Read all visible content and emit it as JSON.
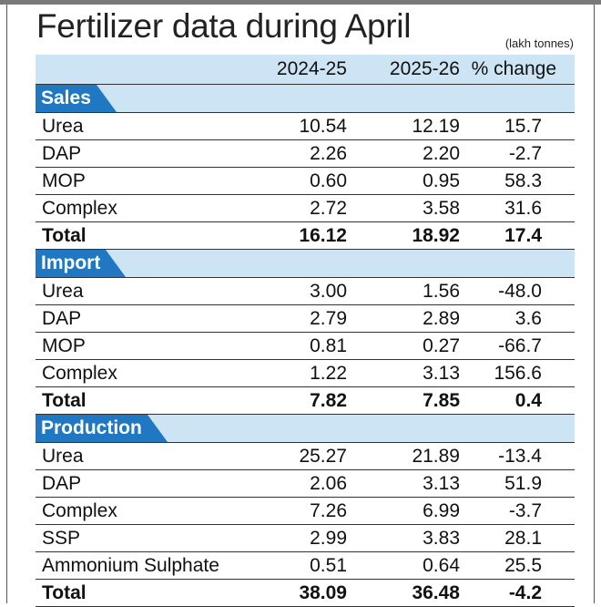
{
  "title": "Fertilizer data during April",
  "unit": "(lakh tonnes)",
  "chart_data": {
    "type": "table",
    "columns": [
      "",
      "2024-25",
      "2025-26",
      "% change"
    ],
    "sections": [
      {
        "name": "Sales",
        "rows": [
          {
            "label": "Urea",
            "v1": "10.54",
            "v2": "12.19",
            "chg": "15.7"
          },
          {
            "label": "DAP",
            "v1": "2.26",
            "v2": "2.20",
            "chg": "-2.7"
          },
          {
            "label": "MOP",
            "v1": "0.60",
            "v2": "0.95",
            "chg": "58.3"
          },
          {
            "label": "Complex",
            "v1": "2.72",
            "v2": "3.58",
            "chg": "31.6"
          }
        ],
        "total": {
          "label": "Total",
          "v1": "16.12",
          "v2": "18.92",
          "chg": "17.4"
        }
      },
      {
        "name": "Import",
        "rows": [
          {
            "label": "Urea",
            "v1": "3.00",
            "v2": "1.56",
            "chg": "-48.0"
          },
          {
            "label": "DAP",
            "v1": "2.79",
            "v2": "2.89",
            "chg": "3.6"
          },
          {
            "label": "MOP",
            "v1": "0.81",
            "v2": "0.27",
            "chg": "-66.7"
          },
          {
            "label": "Complex",
            "v1": "1.22",
            "v2": "3.13",
            "chg": "156.6"
          }
        ],
        "total": {
          "label": "Total",
          "v1": "7.82",
          "v2": "7.85",
          "chg": "0.4"
        }
      },
      {
        "name": "Production",
        "rows": [
          {
            "label": "Urea",
            "v1": "25.27",
            "v2": "21.89",
            "chg": "-13.4"
          },
          {
            "label": "DAP",
            "v1": "2.06",
            "v2": "3.13",
            "chg": "51.9"
          },
          {
            "label": "Complex",
            "v1": "7.26",
            "v2": "6.99",
            "chg": "-3.7"
          },
          {
            "label": "SSP",
            "v1": "2.99",
            "v2": "3.83",
            "chg": "28.1"
          },
          {
            "label": "Ammonium Sulphate",
            "v1": "0.51",
            "v2": "0.64",
            "chg": "25.5"
          }
        ],
        "total": {
          "label": "Total",
          "v1": "38.09",
          "v2": "36.48",
          "chg": "-4.2"
        }
      }
    ]
  }
}
